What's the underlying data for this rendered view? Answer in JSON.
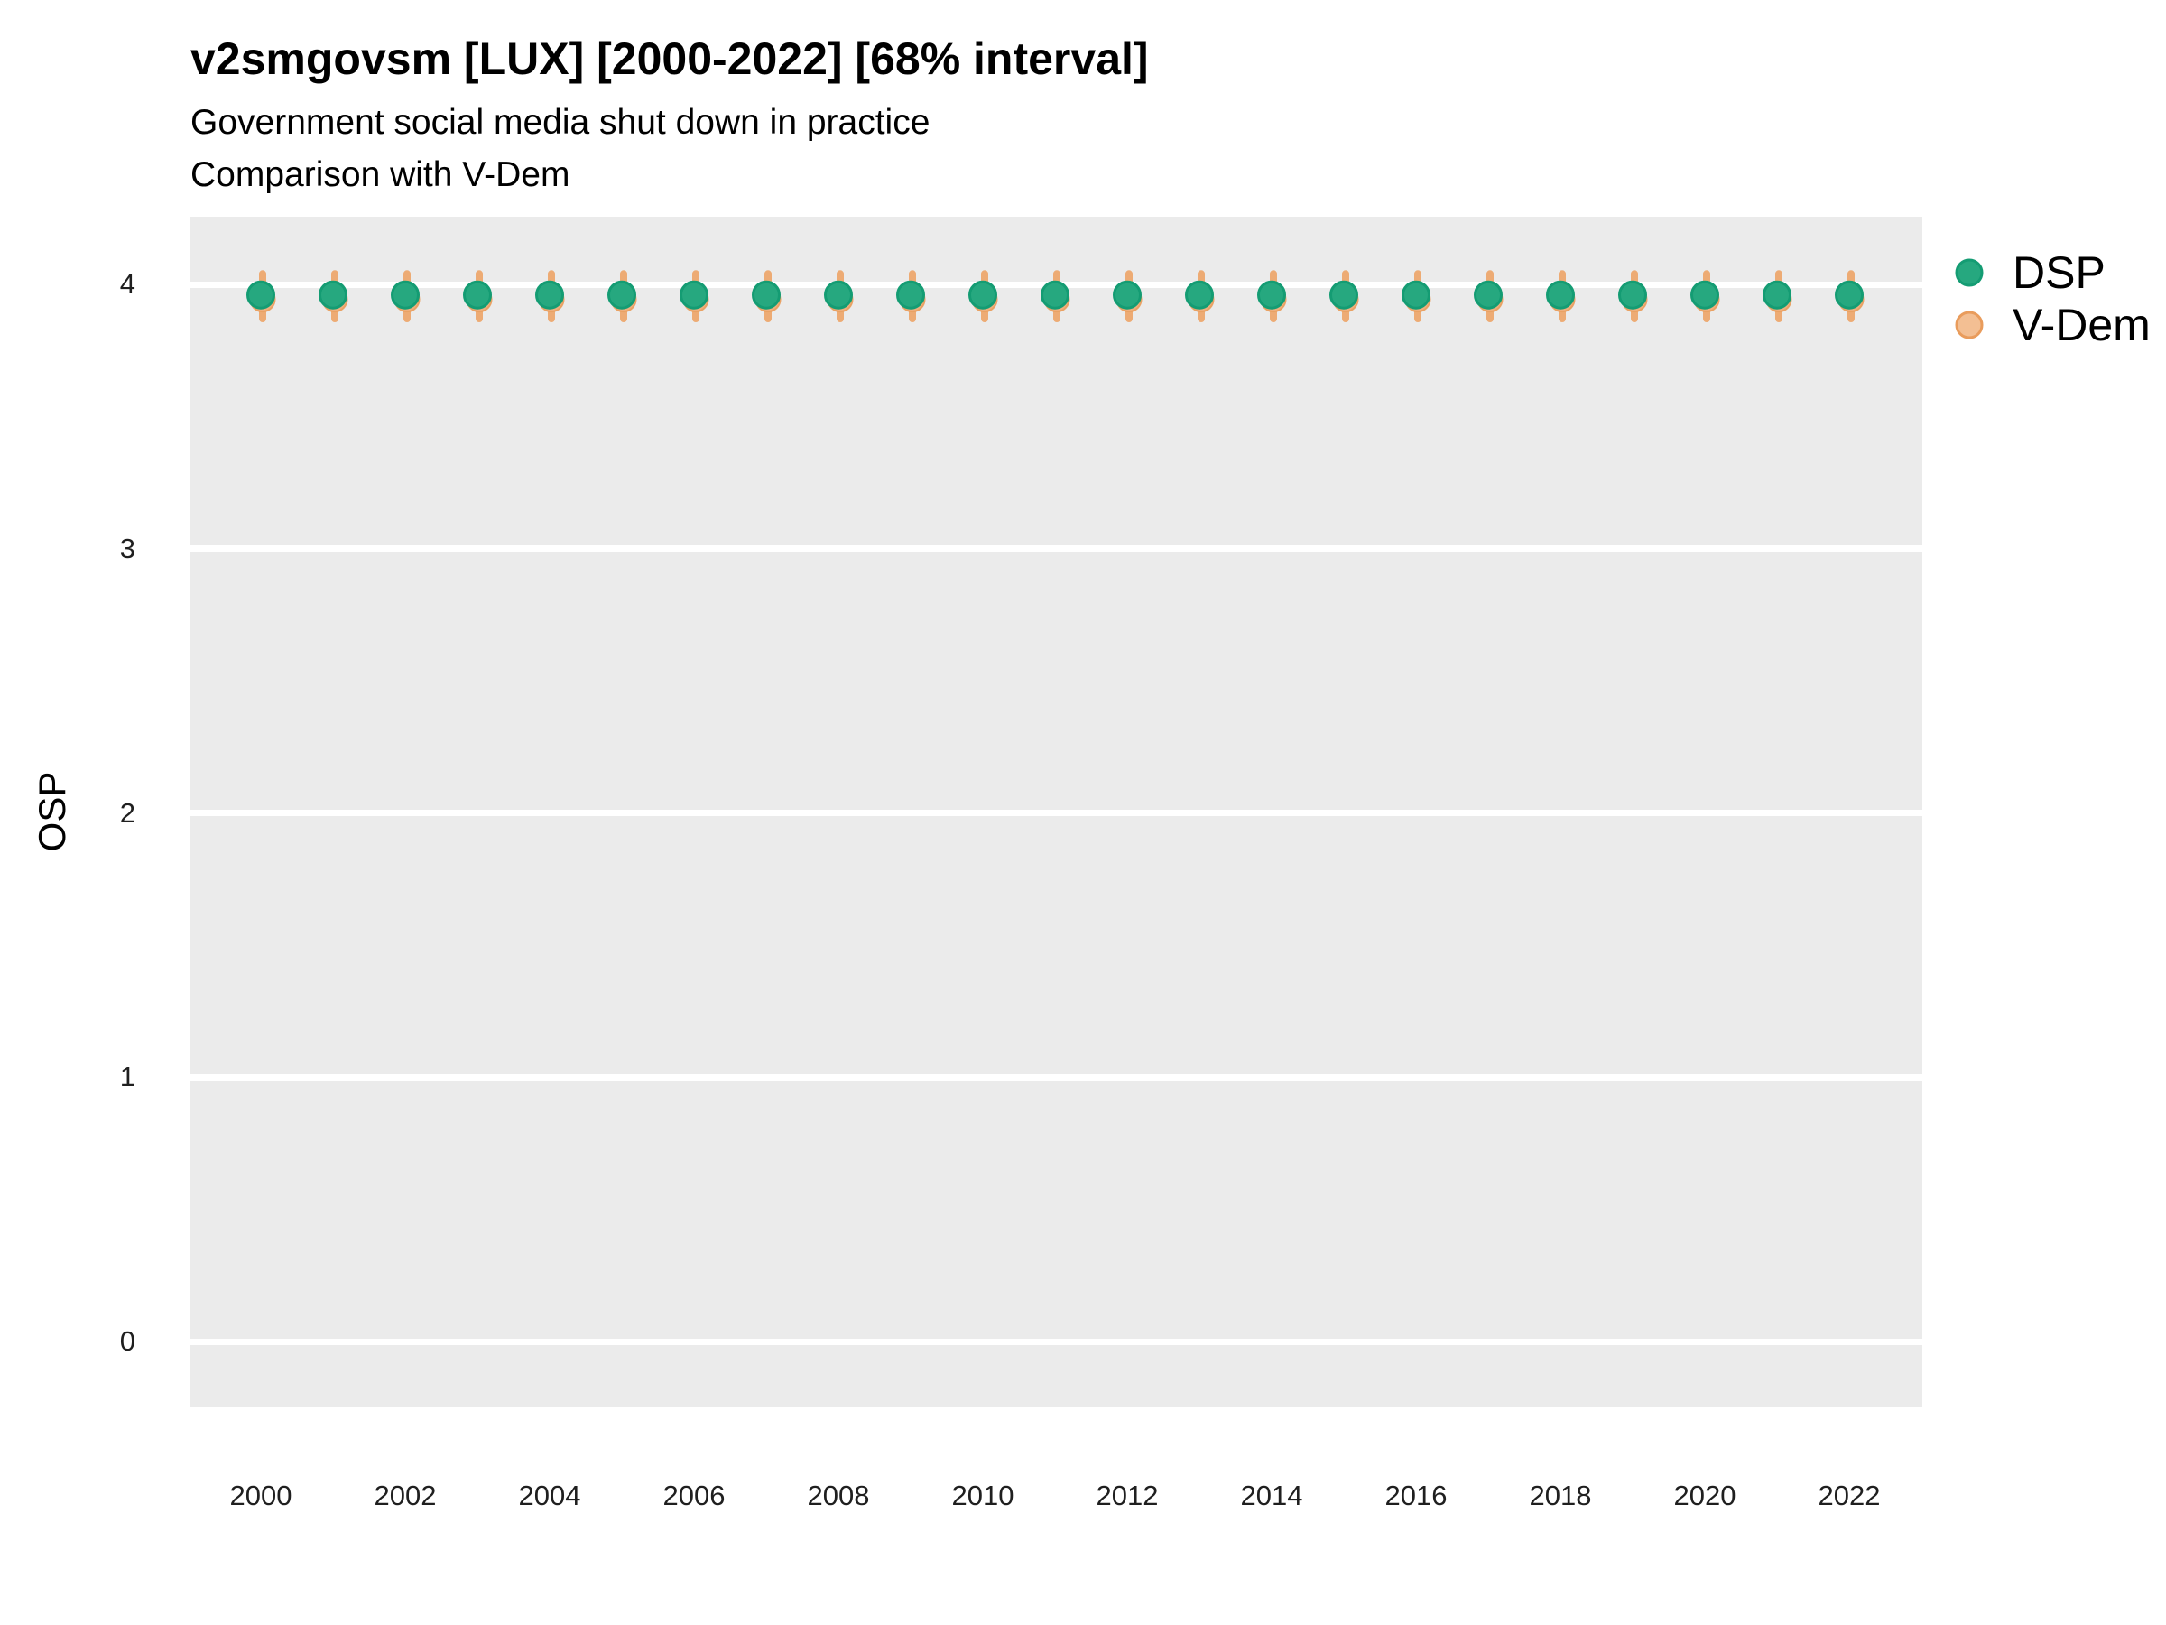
{
  "title": "v2smgovsm [LUX] [2000-2022] [68% interval]",
  "subtitle": "Government social media shut down in practice",
  "subtitle2": "Comparison with V-Dem",
  "y_axis": {
    "label": "OSP",
    "ticks": [
      4,
      3,
      2,
      1,
      0
    ]
  },
  "x_axis": {
    "ticks": [
      2000,
      2002,
      2004,
      2006,
      2008,
      2010,
      2012,
      2014,
      2016,
      2018,
      2020,
      2022
    ]
  },
  "legend": {
    "position": "right",
    "items": [
      {
        "label": "DSP",
        "fill": "#26A87F",
        "stroke": "#149C73"
      },
      {
        "label": "V-Dem",
        "fill": "#F3BF93",
        "stroke": "#E99C5C"
      }
    ]
  },
  "colors": {
    "panel_background": "#EBEBEB",
    "gridline": "#FFFFFF",
    "dsp_fill": "#26A87F",
    "dsp_stroke": "#149C73",
    "vdem_fill": "#F0B07E",
    "vdem_stroke": "#E9A264",
    "vdem_interval": "#EDAB74",
    "text": "#000000"
  },
  "chart_data": {
    "type": "scatter",
    "title": "v2smgovsm [LUX] [2000-2022] [68% interval]",
    "subtitle": "Government social media shut down in practice",
    "note": "Comparison with V-Dem",
    "xlabel": "",
    "ylabel": "OSP",
    "ylim": [
      -0.25,
      4.26
    ],
    "yticks": [
      0,
      1,
      2,
      3,
      4
    ],
    "xticks": [
      2000,
      2002,
      2004,
      2006,
      2008,
      2010,
      2012,
      2014,
      2016,
      2018,
      2020,
      2022
    ],
    "grid": "horizontal-major-only",
    "legend_position": "right",
    "x": [
      2000,
      2001,
      2002,
      2003,
      2004,
      2005,
      2006,
      2007,
      2008,
      2009,
      2010,
      2011,
      2012,
      2013,
      2014,
      2015,
      2016,
      2017,
      2018,
      2019,
      2020,
      2021,
      2022
    ],
    "series": [
      {
        "name": "DSP",
        "values": [
          3.96,
          3.96,
          3.96,
          3.96,
          3.96,
          3.96,
          3.96,
          3.96,
          3.96,
          3.96,
          3.96,
          3.96,
          3.96,
          3.96,
          3.96,
          3.96,
          3.96,
          3.96,
          3.96,
          3.96,
          3.96,
          3.96,
          3.96
        ]
      },
      {
        "name": "V-Dem",
        "values": [
          3.95,
          3.95,
          3.95,
          3.95,
          3.95,
          3.95,
          3.95,
          3.95,
          3.95,
          3.95,
          3.95,
          3.95,
          3.95,
          3.95,
          3.95,
          3.95,
          3.95,
          3.95,
          3.95,
          3.95,
          3.95,
          3.95,
          3.95
        ],
        "interval_68_lower": [
          3.87,
          3.87,
          3.87,
          3.87,
          3.87,
          3.87,
          3.87,
          3.87,
          3.87,
          3.87,
          3.87,
          3.87,
          3.87,
          3.87,
          3.87,
          3.87,
          3.87,
          3.87,
          3.87,
          3.87,
          3.87,
          3.87,
          3.87
        ],
        "interval_68_upper": [
          4.04,
          4.04,
          4.04,
          4.04,
          4.04,
          4.04,
          4.04,
          4.04,
          4.04,
          4.04,
          4.04,
          4.04,
          4.04,
          4.04,
          4.04,
          4.04,
          4.04,
          4.04,
          4.04,
          4.04,
          4.04,
          4.04,
          4.04
        ]
      }
    ]
  }
}
